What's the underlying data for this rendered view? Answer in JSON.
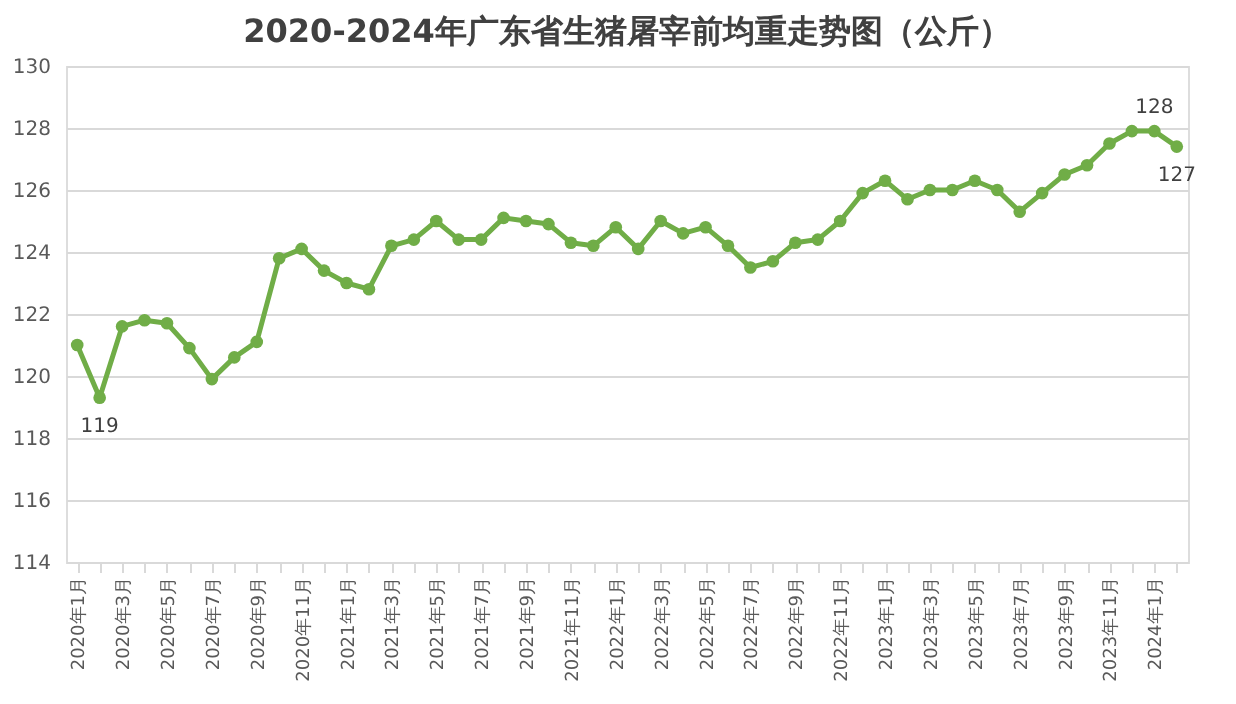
{
  "chart_data": {
    "type": "line",
    "title": "2020-2024年广东省生猪屠宰前均重走势图（公斤）",
    "categories": [
      "2020年1月",
      null,
      "2020年3月",
      null,
      "2020年5月",
      null,
      "2020年7月",
      null,
      "2020年9月",
      null,
      "2020年11月",
      null,
      "2021年1月",
      null,
      "2021年3月",
      null,
      "2021年5月",
      null,
      "2021年7月",
      null,
      "2021年9月",
      null,
      "2021年11月",
      null,
      "2022年1月",
      null,
      "2022年3月",
      null,
      "2022年5月",
      null,
      "2022年7月",
      null,
      "2022年9月",
      null,
      "2022年11月",
      null,
      "2023年1月",
      null,
      "2023年3月",
      null,
      "2023年5月",
      null,
      "2023年7月",
      null,
      "2023年9月",
      null,
      "2023年11月",
      null,
      "2024年1月",
      null
    ],
    "series": [
      {
        "color": "#70ad47",
        "values": [
          121.0,
          119.3,
          121.6,
          121.8,
          121.7,
          120.9,
          119.9,
          120.6,
          121.1,
          123.8,
          124.1,
          123.4,
          123.0,
          122.8,
          124.2,
          124.4,
          125.0,
          124.4,
          124.4,
          125.1,
          125.0,
          124.9,
          124.3,
          124.2,
          124.8,
          124.1,
          125.0,
          124.6,
          124.8,
          124.2,
          123.5,
          123.7,
          124.3,
          124.4,
          125.0,
          125.9,
          126.3,
          125.7,
          126.0,
          126.0,
          126.3,
          126.0,
          125.3,
          125.9,
          126.5,
          126.8,
          127.5,
          127.9,
          127.9,
          127.4
        ],
        "value_labels": [
          null,
          "119",
          null,
          null,
          null,
          null,
          null,
          null,
          null,
          null,
          null,
          null,
          null,
          null,
          null,
          null,
          null,
          null,
          null,
          null,
          null,
          null,
          null,
          null,
          null,
          null,
          null,
          null,
          null,
          null,
          null,
          null,
          null,
          null,
          null,
          null,
          null,
          null,
          null,
          null,
          null,
          null,
          null,
          null,
          null,
          null,
          null,
          null,
          "128",
          "127"
        ]
      }
    ],
    "ylim": [
      114,
      130
    ],
    "yticks": [
      114,
      116,
      118,
      120,
      122,
      124,
      126,
      128,
      130
    ],
    "grid": "y",
    "marker": "circle",
    "line_style": "solid"
  }
}
